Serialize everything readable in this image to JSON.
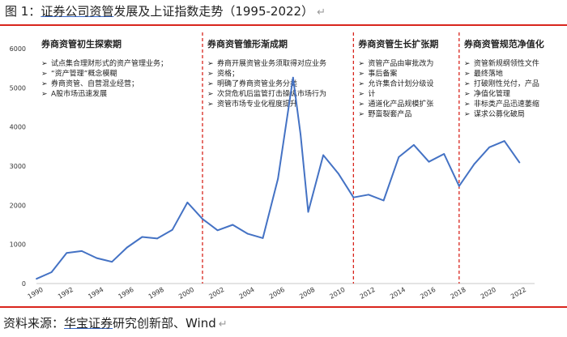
{
  "title": {
    "prefix": "图 1：",
    "underlined": "证券公司资管",
    "rest": "发展及上证指数走势（1995-2022）",
    "return_mark": "↵"
  },
  "source": {
    "prefix": "资料来源：",
    "underlined": "华宝证券",
    "rest": "研究创新部、Wind",
    "return_mark": "↵"
  },
  "colors": {
    "line": "#4472c4",
    "divider": "#d9251d",
    "rule": "#d9251d"
  },
  "chart_data": {
    "type": "line",
    "title": "",
    "xlabel": "",
    "ylabel": "",
    "xlim": [
      1990,
      2023
    ],
    "ylim": [
      0,
      6000
    ],
    "yticks": [
      0,
      1000,
      2000,
      3000,
      4000,
      5000,
      6000
    ],
    "xticks": [
      1990,
      1992,
      1994,
      1996,
      1998,
      2000,
      2002,
      2004,
      2006,
      2008,
      2010,
      2012,
      2014,
      2016,
      2018,
      2020,
      2022
    ],
    "grid": false,
    "series": [
      {
        "x": [
          1990,
          1991,
          1992,
          1993,
          1994,
          1995,
          1996,
          1997,
          1998,
          1999,
          2000,
          2001,
          2002,
          2003,
          2004,
          2005,
          2006,
          2007,
          2007.5,
          2008,
          2009,
          2010,
          2011,
          2012,
          2013,
          2014,
          2015,
          2016,
          2017,
          2018,
          2019,
          2020,
          2021,
          2022
        ],
        "y": [
          120,
          290,
          780,
          830,
          650,
          555,
          920,
          1190,
          1150,
          1370,
          2070,
          1650,
          1360,
          1500,
          1270,
          1160,
          2680,
          5260,
          3800,
          1830,
          3280,
          2810,
          2200,
          2270,
          2120,
          3230,
          3540,
          3110,
          3310,
          2490,
          3050,
          3480,
          3640,
          3090
        ]
      }
    ],
    "dividers": [
      2001,
      2011,
      2018
    ],
    "periods": [
      {
        "title": "券商资管初生探索期",
        "notes": [
          "试点集合理财形式的资产管理业务；",
          "“资产管理”概念模糊",
          "券商资管、自营混业经营；",
          "A股市场迅速发展"
        ]
      },
      {
        "title": "券商资管雏形渐成期",
        "notes": [
          "券商开展资管业务须取得对应业务",
          "资格；",
          "明确了券商资管业务分类",
          "次贷危机后监管打击操纵市场行为",
          "资管市场专业化程度提升"
        ]
      },
      {
        "title": "券商资管生长扩张期",
        "notes": [
          "资管产品由审批改为",
          "事后备案",
          "允许集合计划分级设",
          "计",
          "通道化产品规模扩张",
          "野蛮裂套产品"
        ]
      },
      {
        "title": "券商资管规范净值化",
        "notes": [
          "资管新规纲领性文件",
          "最终落地",
          "打破刚性兑付，产品",
          "净值化管理",
          "非标类产品迅速萎缩",
          "谋求公募化破局"
        ]
      }
    ]
  }
}
